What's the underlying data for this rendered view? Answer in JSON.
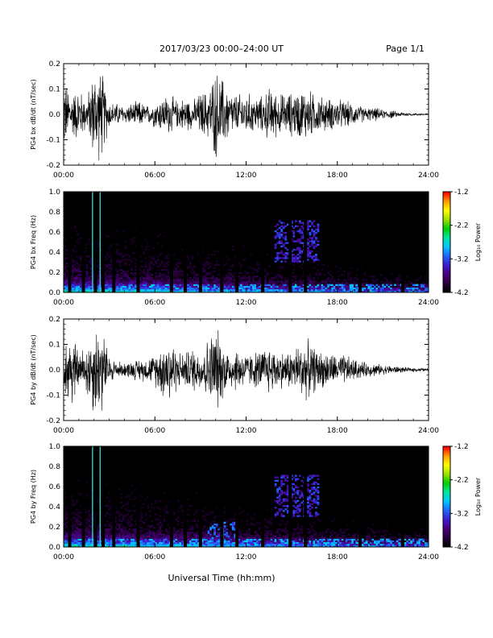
{
  "header": {
    "title": "2017/03/23  00:00–24:00 UT",
    "page": "Page 1/1"
  },
  "xaxis_label": "Universal Time (hh:mm)",
  "colors": {
    "trace": "#000000",
    "spectrogram_background": "#000000",
    "colormap": [
      "#000000",
      "#2a0040",
      "#4b0082",
      "#3a1fd0",
      "#1f6aff",
      "#00c8ff",
      "#00e6a0",
      "#00d000",
      "#a0e000",
      "#ffff00",
      "#ffa000",
      "#ff0000"
    ]
  },
  "chart_data": [
    {
      "type": "line",
      "title": "",
      "xlabel": "",
      "ylabel": "PG4 bx dB/dt (nT/sec)",
      "xlim": [
        0,
        24
      ],
      "ylim": [
        -0.2,
        0.2
      ],
      "xticks": [
        "00:00",
        "06:00",
        "12:00",
        "18:00",
        "24:00"
      ],
      "yticks": [
        "0.2",
        "0.1",
        "0.0",
        "-0.1",
        "-0.2"
      ],
      "series": [
        {
          "x": [
            0,
            0.5,
            1,
            1.5,
            2,
            2.25,
            2.5,
            3,
            3.5,
            4,
            4.5,
            5,
            5.5,
            6,
            6.5,
            7,
            7.5,
            8,
            8.5,
            9,
            9.5,
            10,
            10.5,
            11,
            11.5,
            12,
            12.5,
            13,
            13.5,
            14,
            14.5,
            15,
            15.5,
            16,
            16.5,
            17,
            17.5,
            18,
            18.5,
            19,
            19.5,
            20,
            20.5,
            21,
            21.5,
            22,
            22.5,
            23,
            23.5,
            24
          ],
          "values": [
            0.16,
            0.1,
            0.12,
            0.07,
            0.2,
            0.2,
            0.2,
            0.06,
            0.05,
            0.04,
            0.05,
            0.06,
            0.04,
            0.06,
            0.08,
            0.09,
            0.06,
            0.08,
            0.06,
            0.1,
            0.11,
            0.2,
            0.16,
            0.1,
            0.09,
            0.1,
            0.08,
            0.08,
            0.12,
            0.1,
            0.09,
            0.1,
            0.11,
            0.12,
            0.09,
            0.08,
            0.07,
            0.07,
            0.06,
            0.05,
            0.04,
            0.03,
            0.03,
            0.02,
            0.02,
            0.01,
            0.01,
            0.005,
            0.005,
            0.005
          ]
        }
      ]
    },
    {
      "type": "heatmap",
      "title": "",
      "xlabel": "",
      "ylabel": "PG4 bx Freq (Hz)",
      "xlim": [
        0,
        24
      ],
      "ylim": [
        0,
        1
      ],
      "xticks": [
        "00:00",
        "06:00",
        "12:00",
        "18:00",
        "24:00"
      ],
      "yticks": [
        "1.0",
        "0.8",
        "0.6",
        "0.4",
        "0.2",
        "0.0"
      ],
      "colorbar": {
        "label": "Log₁₀ Power",
        "ticks": [
          "-1.2",
          "-2.2",
          "-3.2",
          "-4.2"
        ],
        "range": [
          -4.2,
          -1.2
        ]
      },
      "gaps_hours": [
        0.4,
        1.3,
        2.1,
        2.6,
        3.3,
        4.9,
        7.1,
        8.0,
        9.0,
        10.4,
        11.4,
        13.1,
        14.9,
        15.9,
        19.5,
        22.3
      ],
      "bright_lines_hours": [
        1.9,
        2.4
      ],
      "features": [
        {
          "x0": 13.8,
          "x1": 16.8,
          "f0": 0.3,
          "f1": 0.72,
          "level": -3.4
        },
        {
          "x0": 0,
          "x1": 24,
          "f0": 0,
          "f1": 0.08,
          "level": -3.0
        }
      ]
    },
    {
      "type": "line",
      "title": "",
      "xlabel": "",
      "ylabel": "PG4 by dB/dt (nT/sec)",
      "xlim": [
        0,
        24
      ],
      "ylim": [
        -0.2,
        0.2
      ],
      "xticks": [
        "00:00",
        "06:00",
        "12:00",
        "18:00",
        "24:00"
      ],
      "yticks": [
        "0.2",
        "0.1",
        "0.0",
        "-0.1",
        "-0.2"
      ],
      "series": [
        {
          "x": [
            0,
            0.5,
            1,
            1.5,
            2,
            2.25,
            2.5,
            3,
            3.5,
            4,
            4.5,
            5,
            5.5,
            6,
            6.5,
            7,
            7.5,
            8,
            8.5,
            9,
            9.5,
            10,
            10.5,
            11,
            11.5,
            12,
            12.5,
            13,
            13.5,
            14,
            14.5,
            15,
            15.5,
            16,
            16.5,
            17,
            17.5,
            18,
            18.5,
            19,
            19.5,
            20,
            20.5,
            21,
            21.5,
            22,
            22.5,
            23,
            23.5,
            24
          ],
          "values": [
            0.1,
            0.2,
            0.07,
            0.12,
            0.2,
            0.2,
            0.2,
            0.06,
            0.04,
            0.03,
            0.04,
            0.05,
            0.05,
            0.07,
            0.12,
            0.16,
            0.08,
            0.08,
            0.1,
            0.09,
            0.14,
            0.2,
            0.12,
            0.09,
            0.1,
            0.07,
            0.08,
            0.09,
            0.11,
            0.09,
            0.08,
            0.09,
            0.12,
            0.13,
            0.1,
            0.08,
            0.08,
            0.06,
            0.07,
            0.05,
            0.04,
            0.03,
            0.03,
            0.02,
            0.02,
            0.015,
            0.01,
            0.01,
            0.008,
            0.006
          ]
        }
      ]
    },
    {
      "type": "heatmap",
      "title": "",
      "xlabel": "",
      "ylabel": "PG4 by Freq (Hz)",
      "xlim": [
        0,
        24
      ],
      "ylim": [
        0,
        1
      ],
      "xticks": [
        "00:00",
        "06:00",
        "12:00",
        "18:00",
        "24:00"
      ],
      "yticks": [
        "1.0",
        "0.8",
        "0.6",
        "0.4",
        "0.2",
        "0.0"
      ],
      "colorbar": {
        "label": "Log₁₀ Power",
        "ticks": [
          "-1.2",
          "-2.2",
          "-3.2",
          "-4.2"
        ],
        "range": [
          -4.2,
          -1.2
        ]
      },
      "gaps_hours": [
        0.4,
        1.3,
        2.1,
        2.6,
        3.3,
        4.9,
        7.1,
        8.0,
        9.0,
        10.4,
        11.4,
        13.1,
        14.9,
        15.9,
        19.5,
        22.3
      ],
      "bright_lines_hours": [
        1.9,
        2.4
      ],
      "features": [
        {
          "x0": 13.8,
          "x1": 16.8,
          "f0": 0.3,
          "f1": 0.72,
          "level": -3.4
        },
        {
          "x0": 9.5,
          "x1": 11.5,
          "f0": 0.0,
          "f1": 0.25,
          "level": -3.2
        },
        {
          "x0": 0,
          "x1": 24,
          "f0": 0,
          "f1": 0.08,
          "level": -3.0
        }
      ]
    }
  ]
}
